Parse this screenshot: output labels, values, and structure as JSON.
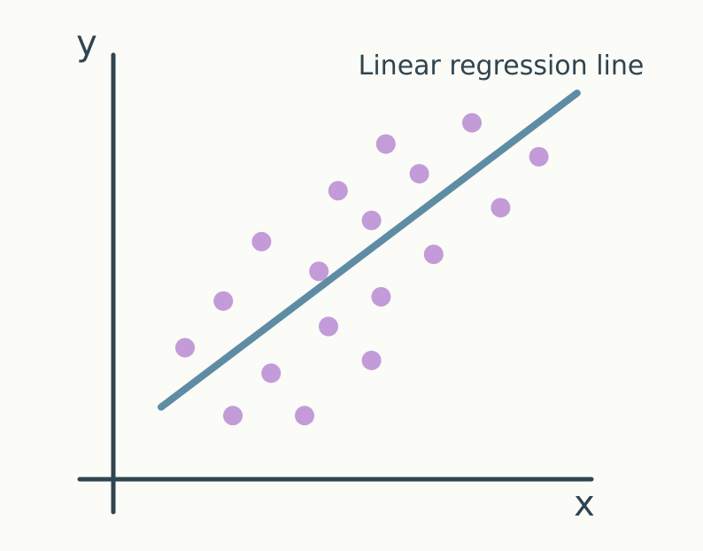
{
  "chart_data": {
    "type": "scatter",
    "title": "",
    "xlabel": "x",
    "ylabel": "y",
    "xlim": [
      0,
      10
    ],
    "ylim": [
      0,
      10
    ],
    "grid": false,
    "legend": "none",
    "point_color": "#c29bd8",
    "line_color": "#5f8ca5",
    "axis_color": "#2f4550",
    "annotation": "Linear regression line",
    "series": [
      {
        "type": "scatter",
        "points": [
          {
            "x": 1.5,
            "y": 3.1
          },
          {
            "x": 2.3,
            "y": 4.2
          },
          {
            "x": 3.1,
            "y": 5.6
          },
          {
            "x": 2.5,
            "y": 1.5
          },
          {
            "x": 3.3,
            "y": 2.5
          },
          {
            "x": 4.3,
            "y": 4.9
          },
          {
            "x": 4.0,
            "y": 1.5
          },
          {
            "x": 4.5,
            "y": 3.6
          },
          {
            "x": 4.7,
            "y": 6.8
          },
          {
            "x": 5.4,
            "y": 6.1
          },
          {
            "x": 5.7,
            "y": 7.9
          },
          {
            "x": 5.6,
            "y": 4.3
          },
          {
            "x": 5.4,
            "y": 2.8
          },
          {
            "x": 6.4,
            "y": 7.2
          },
          {
            "x": 6.7,
            "y": 5.3
          },
          {
            "x": 7.5,
            "y": 8.4
          },
          {
            "x": 8.1,
            "y": 6.4
          },
          {
            "x": 8.9,
            "y": 7.6
          }
        ]
      },
      {
        "type": "line",
        "points": [
          {
            "x": 1.0,
            "y": 1.7
          },
          {
            "x": 9.7,
            "y": 9.1
          }
        ]
      }
    ]
  }
}
